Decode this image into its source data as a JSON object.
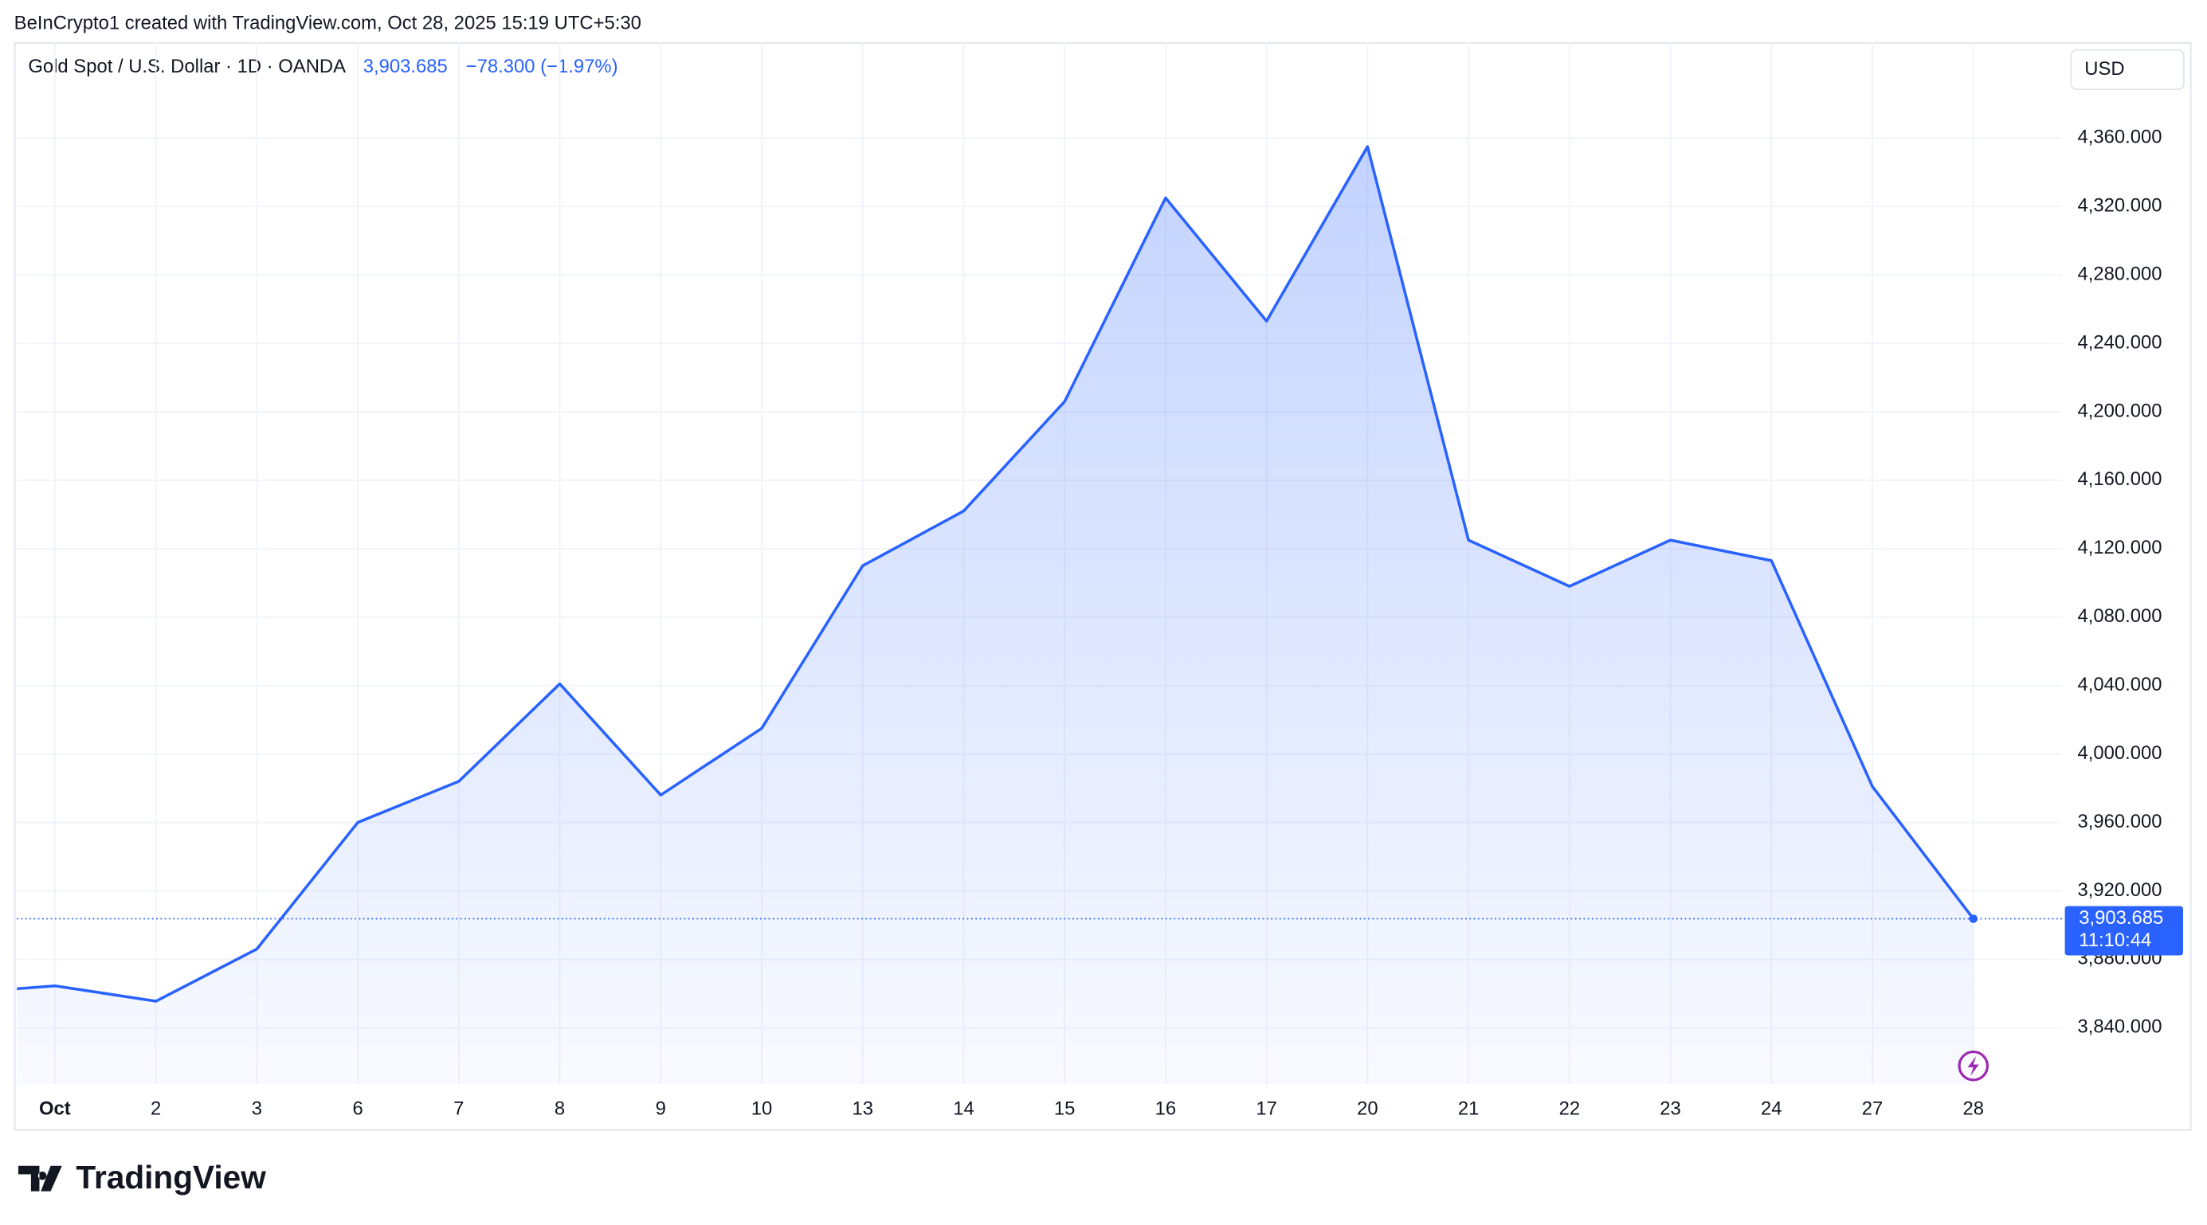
{
  "chart_data": {
    "type": "line",
    "attribution": "BeInCrypto1 created with TradingView.com, Oct 28, 2025 15:19 UTC+5:30",
    "title": "Gold Spot / U.S. Dollar · 1D · OANDA",
    "last_price_label": "3,903.685",
    "change_label": "−78.300 (−1.97%)",
    "currency": "USD",
    "countdown": "11:10:44",
    "brand": "TradingView",
    "categories": [
      null,
      "Oct",
      "2",
      "3",
      "6",
      "7",
      "8",
      "9",
      "10",
      "13",
      "14",
      "15",
      "16",
      "17",
      "20",
      "21",
      "22",
      "23",
      "24",
      "27",
      "28"
    ],
    "series": [
      {
        "name": "Gold Spot / U.S. Dollar",
        "color": "#2962ff",
        "values": [
          3860,
          3864.5,
          3855.5,
          3886,
          3960,
          3984,
          4041,
          3976,
          4015,
          4110,
          4142,
          4206,
          4325,
          4253,
          4355,
          4125,
          4098,
          4125,
          4113,
          3981,
          3903.685
        ]
      }
    ],
    "ylim": [
      3807,
      4416
    ],
    "yticks": [
      {
        "value": 3840,
        "label": "3,840.000"
      },
      {
        "value": 3880,
        "label": "3,880.000"
      },
      {
        "value": 3920,
        "label": "3,920.000"
      },
      {
        "value": 3960,
        "label": "3,960.000"
      },
      {
        "value": 4000,
        "label": "4,000.000"
      },
      {
        "value": 4040,
        "label": "4,040.000"
      },
      {
        "value": 4080,
        "label": "4,080.000"
      },
      {
        "value": 4120,
        "label": "4,120.000"
      },
      {
        "value": 4160,
        "label": "4,160.000"
      },
      {
        "value": 4200,
        "label": "4,200.000"
      },
      {
        "value": 4240,
        "label": "4,240.000"
      },
      {
        "value": 4280,
        "label": "4,280.000"
      },
      {
        "value": 4320,
        "label": "4,320.000"
      },
      {
        "value": 4360,
        "label": "4,360.000"
      }
    ],
    "grid": true
  }
}
